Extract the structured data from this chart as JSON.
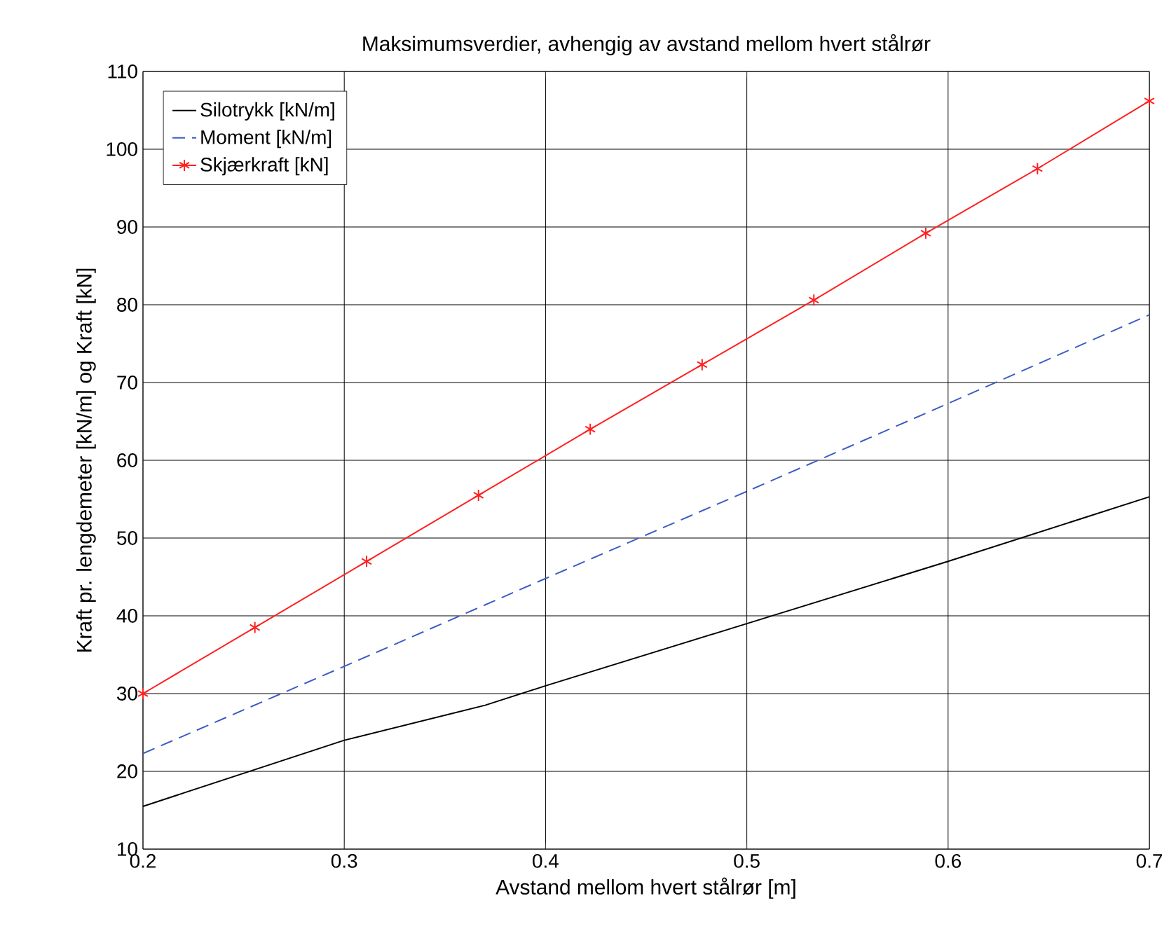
{
  "chart_data": {
    "type": "line",
    "title": "Maksimumsverdier, avhengig av avstand mellom hvert stålrør",
    "xlabel": "Avstand mellom hvert stålrør [m]",
    "ylabel": "Kraft pr. lengdemeter [kN/m] og Kraft [kN]",
    "xlim": [
      0.2,
      0.7
    ],
    "xticks": [
      0.2,
      0.3,
      0.4,
      0.5,
      0.6,
      0.7
    ],
    "ylim": [
      10,
      110
    ],
    "yticks": [
      10,
      20,
      30,
      40,
      50,
      60,
      70,
      80,
      90,
      100,
      110
    ],
    "grid": true,
    "legend": "top left",
    "series": [
      {
        "name": "Silotrykk [kN/m]",
        "color": "#000000",
        "line_style": "solid",
        "marker": "none",
        "x": [
          0.2,
          0.3,
          0.37,
          0.4,
          0.5,
          0.6,
          0.7
        ],
        "values": [
          15.5,
          24,
          28.5,
          31,
          39,
          47,
          55.3
        ]
      },
      {
        "name": "Moment [kN/m]",
        "color": "#3c5cc4",
        "line_style": "dashed",
        "marker": "none",
        "x": [
          0.2,
          0.3,
          0.4,
          0.5,
          0.6,
          0.7
        ],
        "values": [
          22.3,
          33.5,
          44.8,
          56,
          67.3,
          78.7
        ]
      },
      {
        "name": "Skjærkraft [kN]",
        "color": "#ff2020",
        "line_style": "solid",
        "marker": "cross",
        "x": [
          0.2,
          0.2556,
          0.3111,
          0.3667,
          0.4222,
          0.4778,
          0.5333,
          0.5889,
          0.6444,
          0.7
        ],
        "values": [
          30,
          38.5,
          47,
          55.5,
          64,
          72.3,
          80.6,
          89.2,
          97.5,
          106.2
        ]
      }
    ]
  }
}
